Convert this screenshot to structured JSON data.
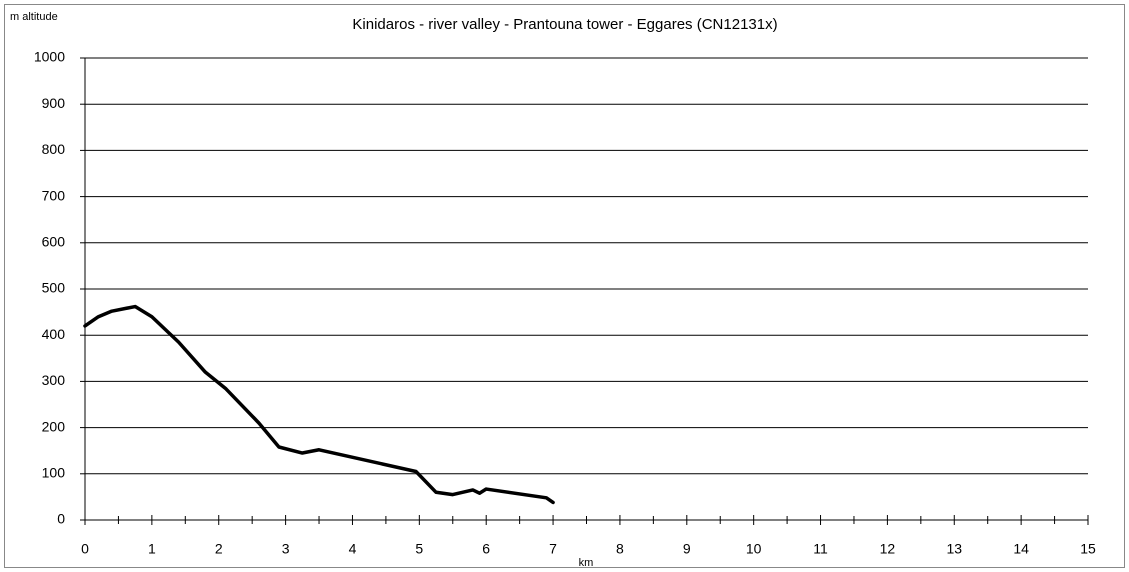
{
  "chart_data": {
    "type": "line",
    "title": "Kinidaros - river valley - Prantouna tower - Eggares (CN12131x)",
    "y_label": "m altitude",
    "x_label": "km",
    "series": [
      {
        "name": "altitude",
        "color": "#000000",
        "x": [
          0,
          0.2,
          0.4,
          0.75,
          1,
          1.4,
          1.8,
          2.1,
          2.6,
          2.9,
          3.25,
          3.5,
          4.95,
          5.25,
          5.5,
          5.8,
          5.9,
          6.0,
          6.9,
          7.0
        ],
        "values": [
          420,
          440,
          452,
          462,
          440,
          385,
          320,
          285,
          210,
          158,
          145,
          152,
          105,
          60,
          55,
          65,
          58,
          67,
          48,
          38
        ]
      }
    ],
    "xlim": [
      0,
      15
    ],
    "xticks": [
      0,
      1,
      2,
      3,
      4,
      5,
      6,
      7,
      8,
      9,
      10,
      11,
      12,
      13,
      14,
      15
    ],
    "ylim": [
      0,
      1000
    ],
    "yticks": [
      0,
      100,
      200,
      300,
      400,
      500,
      600,
      700,
      800,
      900,
      1000
    ],
    "grid": true
  }
}
